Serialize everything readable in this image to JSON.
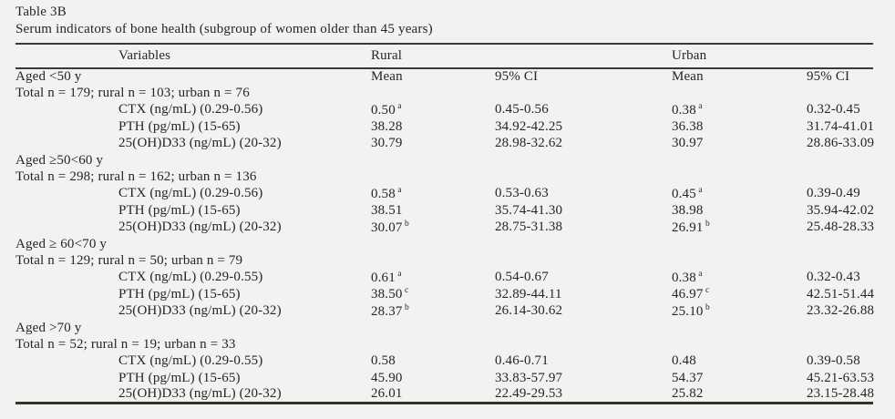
{
  "title": "Table 3B",
  "subtitle": "Serum indicators of bone health (subgroup of women older than 45 years)",
  "columns": {
    "variables": "Variables",
    "rural": "Rural",
    "urban": "Urban"
  },
  "rows": [
    {
      "label": "Aged <50 y",
      "indent": false,
      "c1": "Mean",
      "c2": "95% CI",
      "c3": "Mean",
      "c4": "95% CI"
    },
    {
      "label": "Total n = 179; rural n = 103; urban n = 76",
      "indent": false
    },
    {
      "label": "CTX (ng/mL) (0.29-0.56)",
      "indent": true,
      "c1": "0.50",
      "c1sup": "a",
      "c2": "0.45-0.56",
      "c3": "0.38",
      "c3sup": "a",
      "c4": "0.32-0.45"
    },
    {
      "label": "PTH (pg/mL) (15-65)",
      "indent": true,
      "c1": "38.28",
      "c2": "34.92-42.25",
      "c3": "36.38",
      "c4": "31.74-41.01"
    },
    {
      "label": "25(OH)D33 (ng/mL) (20-32)",
      "indent": true,
      "c1": "30.79",
      "c2": "28.98-32.62",
      "c3": "30.97",
      "c4": "28.86-33.09"
    },
    {
      "label": "Aged ≥50<60 y",
      "indent": false
    },
    {
      "label": "Total n = 298; rural n = 162; urban n = 136",
      "indent": false
    },
    {
      "label": "CTX (ng/mL) (0.29-0.56)",
      "indent": true,
      "c1": "0.58",
      "c1sup": "a",
      "c2": "0.53-0.63",
      "c3": "0.45",
      "c3sup": "a",
      "c4": "0.39-0.49"
    },
    {
      "label": "PTH (pg/mL) (15-65)",
      "indent": true,
      "c1": "38.51",
      "c2": "35.74-41.30",
      "c3": "38.98",
      "c4": "35.94-42.02"
    },
    {
      "label": "25(OH)D33 (ng/mL) (20-32)",
      "indent": true,
      "c1": "30.07",
      "c1sup": "b",
      "c2": "28.75-31.38",
      "c3": "26.91",
      "c3sup": "b",
      "c4": "25.48-28.33"
    },
    {
      "label": "Aged ≥ 60<70 y",
      "indent": false
    },
    {
      "label": "Total n = 129; rural n = 50; urban n = 79",
      "indent": false
    },
    {
      "label": "CTX (ng/mL) (0.29-0.55)",
      "indent": true,
      "c1": "0.61",
      "c1sup": "a",
      "c2": "0.54-0.67",
      "c3": "0.38",
      "c3sup": "a",
      "c4": "0.32-0.43"
    },
    {
      "label": "PTH (pg/mL) (15-65)",
      "indent": true,
      "c1": "38.50",
      "c1sup": "c",
      "c2": "32.89-44.11",
      "c3": "46.97",
      "c3sup": "c",
      "c4": "42.51-51.44"
    },
    {
      "label": "25(OH)D33 (ng/mL) (20-32)",
      "indent": true,
      "c1": "28.37",
      "c1sup": "b",
      "c2": "26.14-30.62",
      "c3": "25.10",
      "c3sup": "b",
      "c4": "23.32-26.88"
    },
    {
      "label": "Aged >70 y",
      "indent": false
    },
    {
      "label": "Total n = 52; rural n = 19; urban n = 33",
      "indent": false
    },
    {
      "label": "CTX (ng/mL) (0.29-0.55)",
      "indent": true,
      "c1": "0.58",
      "c2": "0.46-0.71",
      "c3": "0.48",
      "c4": "0.39-0.58"
    },
    {
      "label": "PTH (pg/mL) (15-65)",
      "indent": true,
      "c1": "45.90",
      "c2": "33.83-57.97",
      "c3": "54.37",
      "c4": "45.21-63.53"
    },
    {
      "label": "25(OH)D33 (ng/mL) (20-32)",
      "indent": true,
      "c1": "26.01",
      "c2": "22.49-29.53",
      "c3": "25.82",
      "c4": "23.15-28.48"
    }
  ]
}
